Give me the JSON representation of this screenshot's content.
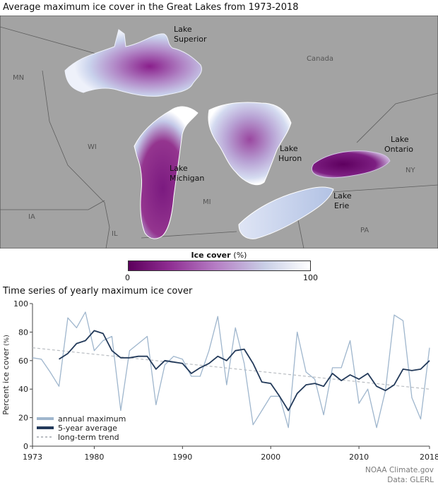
{
  "map_title": "Average maximum ice cover in the Great Lakes from 1973-2018",
  "map": {
    "lakes": [
      {
        "line1": "Lake",
        "line2": "Superior"
      },
      {
        "line1": "Lake",
        "line2": "Michigan"
      },
      {
        "line1": "Lake",
        "line2": "Huron"
      },
      {
        "line1": "Lake",
        "line2": "Erie"
      },
      {
        "line1": "Lake",
        "line2": "Ontario"
      }
    ],
    "regions": [
      "Canada",
      "MN",
      "WI",
      "MI",
      "IA",
      "IL",
      "NY",
      "PA"
    ],
    "colors": {
      "land": "#a3a3a3",
      "water_low": "#ffffff",
      "water_mid": "#a9b4dd",
      "water_high": "#8a1f8c",
      "border": "#5e5e5e"
    }
  },
  "legend": {
    "title": "Ice cover",
    "unit": "(%)",
    "min_label": "0",
    "max_label": "100"
  },
  "chart_title": "Time series of yearly maximum ice cover",
  "chart_data": {
    "type": "line",
    "ylabel": "Percent ice cover",
    "ylabel_unit": "(%)",
    "xlim": [
      1973,
      2018
    ],
    "ylim": [
      0,
      100
    ],
    "yticks": [
      0,
      20,
      40,
      60,
      80,
      100
    ],
    "xticks": [
      1973,
      1980,
      1990,
      2000,
      2010,
      2018
    ],
    "grid": false,
    "legend_position": "bottom-left",
    "series": [
      {
        "name": "annual maximum",
        "color": "#9fb6cd",
        "x": [
          1973,
          1974,
          1975,
          1976,
          1977,
          1978,
          1979,
          1980,
          1981,
          1982,
          1983,
          1984,
          1985,
          1986,
          1987,
          1988,
          1989,
          1990,
          1991,
          1992,
          1993,
          1994,
          1995,
          1996,
          1997,
          1998,
          1999,
          2000,
          2001,
          2002,
          2003,
          2004,
          2005,
          2006,
          2007,
          2008,
          2009,
          2010,
          2011,
          2012,
          2013,
          2014,
          2015,
          2016,
          2017,
          2018
        ],
        "values": [
          62,
          61,
          52,
          42,
          90,
          83,
          94,
          67,
          74,
          77,
          25,
          67,
          72,
          77,
          29,
          57,
          63,
          61,
          49,
          49,
          67,
          91,
          43,
          83,
          58,
          15,
          25,
          35,
          35,
          13,
          80,
          52,
          47,
          22,
          55,
          55,
          74,
          30,
          40,
          13,
          39,
          92,
          88,
          34,
          19,
          69
        ]
      },
      {
        "name": "5-year average",
        "color": "#233a5a",
        "x": [
          1976,
          1977,
          1978,
          1979,
          1980,
          1981,
          1982,
          1983,
          1984,
          1985,
          1986,
          1987,
          1988,
          1989,
          1990,
          1991,
          1992,
          1993,
          1994,
          1995,
          1996,
          1997,
          1998,
          1999,
          2000,
          2001,
          2002,
          2003,
          2004,
          2005,
          2006,
          2007,
          2008,
          2009,
          2010,
          2011,
          2012,
          2013,
          2014,
          2015,
          2016,
          2017,
          2018
        ],
        "values": [
          61,
          65,
          72,
          74,
          81,
          79,
          67,
          62,
          62,
          63,
          63,
          54,
          60,
          59,
          58,
          51,
          55,
          58,
          63,
          60,
          67,
          68,
          58,
          45,
          44,
          35,
          25,
          37,
          43,
          44,
          42,
          51,
          46,
          50,
          47,
          51,
          42,
          39,
          43,
          54,
          53,
          54,
          60
        ]
      },
      {
        "name": "long-term trend",
        "color": "#b9bdc2",
        "x": [
          1973,
          2018
        ],
        "values": [
          69,
          40
        ]
      }
    ]
  },
  "credits": [
    "NOAA Climate.gov",
    "Data: GLERL"
  ]
}
